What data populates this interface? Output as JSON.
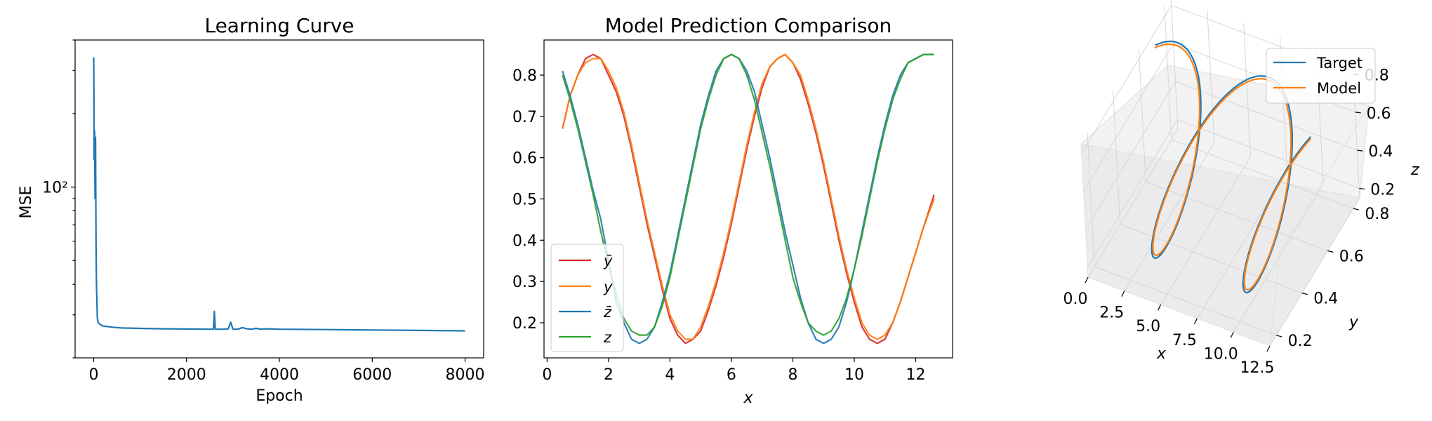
{
  "colors": {
    "blue": "#1f77b4",
    "orange": "#ff7f0e",
    "green": "#2ca02c",
    "red": "#d62728"
  },
  "chart_data": [
    {
      "type": "line",
      "title": "Learning Curve",
      "xlabel": "Epoch",
      "ylabel": "MSE",
      "xlim": [
        -400,
        8400
      ],
      "ylim": [
        20,
        400
      ],
      "yscale": "log",
      "xticks": [
        0,
        2000,
        4000,
        6000,
        8000
      ],
      "xtick_labels": [
        "0",
        "2000",
        "4000",
        "6000",
        "8000"
      ],
      "yticks": [
        100
      ],
      "ytick_labels": [
        "10²"
      ],
      "series": [
        {
          "color": "#1f77b4",
          "x": [
            0,
            5,
            10,
            20,
            30,
            40,
            50,
            60,
            80,
            100,
            150,
            200,
            400,
            600,
            1000,
            1500,
            2000,
            2500,
            2580,
            2600,
            2620,
            2700,
            2800,
            2900,
            2950,
            3000,
            3100,
            3200,
            3300,
            3400,
            3500,
            3600,
            3700,
            4000,
            5000,
            6000,
            7000,
            8000
          ],
          "y": [
            340,
            250,
            130,
            170,
            90,
            160,
            60,
            40,
            29,
            27.8,
            27.3,
            27,
            26.7,
            26.5,
            26.4,
            26.3,
            26.25,
            26.2,
            26.2,
            31,
            26.2,
            26.2,
            26.2,
            26.3,
            28,
            26.2,
            26.2,
            26.6,
            26.3,
            26.2,
            26.4,
            26.2,
            26.3,
            26.2,
            26.1,
            26.0,
            25.9,
            25.8
          ]
        }
      ]
    },
    {
      "type": "line",
      "title": "Model Prediction Comparison",
      "xlabel": "x",
      "ylabel": "",
      "xlim": [
        -0.1,
        13.2
      ],
      "ylim": [
        0.115,
        0.885
      ],
      "xticks": [
        0,
        2,
        4,
        6,
        8,
        10,
        12
      ],
      "xtick_labels": [
        "0",
        "2",
        "4",
        "6",
        "8",
        "10",
        "12"
      ],
      "yticks": [
        0.2,
        0.3,
        0.4,
        0.5,
        0.6,
        0.7,
        0.8
      ],
      "ytick_labels": [
        "0.2",
        "0.3",
        "0.4",
        "0.5",
        "0.6",
        "0.7",
        "0.8"
      ],
      "legend_position": "lower-left",
      "series": [
        {
          "name": "ȳ",
          "color": "#d62728",
          "x": [
            0.5,
            0.75,
            1.0,
            1.25,
            1.5,
            1.75,
            2.0,
            2.25,
            2.5,
            2.75,
            3.0,
            3.25,
            3.5,
            3.75,
            4.0,
            4.25,
            4.5,
            4.75,
            5.0,
            5.25,
            5.5,
            5.75,
            6.0,
            6.25,
            6.5,
            6.75,
            7.0,
            7.25,
            7.5,
            7.75,
            8.0,
            8.25,
            8.5,
            8.75,
            9.0,
            9.25,
            9.5,
            9.75,
            10.0,
            10.25,
            10.5,
            10.75,
            11.0,
            11.25,
            11.5,
            11.75,
            12.0,
            12.25,
            12.6
          ],
          "y": [
            0.67,
            0.75,
            0.8,
            0.84,
            0.85,
            0.84,
            0.8,
            0.76,
            0.7,
            0.62,
            0.53,
            0.44,
            0.36,
            0.28,
            0.21,
            0.17,
            0.15,
            0.16,
            0.18,
            0.23,
            0.29,
            0.36,
            0.44,
            0.53,
            0.62,
            0.7,
            0.77,
            0.82,
            0.84,
            0.85,
            0.83,
            0.79,
            0.73,
            0.66,
            0.58,
            0.49,
            0.4,
            0.32,
            0.25,
            0.19,
            0.16,
            0.15,
            0.16,
            0.2,
            0.25,
            0.31,
            0.37,
            0.43,
            0.51
          ]
        },
        {
          "name": "y",
          "color": "#ff7f0e",
          "x": [
            0.5,
            0.75,
            1.0,
            1.25,
            1.5,
            1.75,
            2.0,
            2.25,
            2.5,
            2.75,
            3.0,
            3.25,
            3.5,
            3.75,
            4.0,
            4.25,
            4.5,
            4.75,
            5.0,
            5.25,
            5.5,
            5.75,
            6.0,
            6.25,
            6.5,
            6.75,
            7.0,
            7.25,
            7.5,
            7.75,
            8.0,
            8.25,
            8.5,
            8.75,
            9.0,
            9.25,
            9.5,
            9.75,
            10.0,
            10.25,
            10.5,
            10.75,
            11.0,
            11.25,
            11.5,
            11.75,
            12.0,
            12.25,
            12.6
          ],
          "y": [
            0.67,
            0.75,
            0.8,
            0.83,
            0.84,
            0.84,
            0.81,
            0.77,
            0.71,
            0.63,
            0.54,
            0.45,
            0.37,
            0.29,
            0.22,
            0.18,
            0.16,
            0.16,
            0.19,
            0.24,
            0.3,
            0.37,
            0.45,
            0.54,
            0.63,
            0.71,
            0.78,
            0.82,
            0.84,
            0.85,
            0.83,
            0.8,
            0.74,
            0.67,
            0.59,
            0.5,
            0.41,
            0.33,
            0.26,
            0.2,
            0.17,
            0.16,
            0.17,
            0.2,
            0.25,
            0.31,
            0.37,
            0.43,
            0.5
          ]
        },
        {
          "name": "z̄",
          "color": "#1f77b4",
          "x": [
            0.5,
            0.75,
            1.0,
            1.25,
            1.5,
            1.75,
            2.0,
            2.25,
            2.5,
            2.75,
            3.0,
            3.25,
            3.5,
            3.75,
            4.0,
            4.25,
            4.5,
            4.75,
            5.0,
            5.25,
            5.5,
            5.75,
            6.0,
            6.25,
            6.5,
            6.75,
            7.0,
            7.25,
            7.5,
            7.75,
            8.0,
            8.25,
            8.5,
            8.75,
            9.0,
            9.25,
            9.5,
            9.75,
            10.0,
            10.25,
            10.5,
            10.75,
            11.0,
            11.25,
            11.5,
            11.75,
            12.0,
            12.25,
            12.6
          ],
          "y": [
            0.81,
            0.75,
            0.68,
            0.6,
            0.52,
            0.45,
            0.35,
            0.25,
            0.2,
            0.16,
            0.15,
            0.16,
            0.19,
            0.25,
            0.32,
            0.41,
            0.5,
            0.59,
            0.68,
            0.75,
            0.81,
            0.84,
            0.85,
            0.84,
            0.81,
            0.76,
            0.68,
            0.6,
            0.51,
            0.42,
            0.34,
            0.26,
            0.2,
            0.16,
            0.15,
            0.16,
            0.19,
            0.25,
            0.33,
            0.42,
            0.51,
            0.6,
            0.68,
            0.75,
            0.8,
            0.83,
            0.84,
            0.85,
            0.85
          ]
        },
        {
          "name": "z",
          "color": "#2ca02c",
          "x": [
            0.5,
            0.75,
            1.0,
            1.25,
            1.5,
            1.75,
            2.0,
            2.25,
            2.5,
            2.75,
            3.0,
            3.25,
            3.5,
            3.75,
            4.0,
            4.25,
            4.5,
            4.75,
            5.0,
            5.25,
            5.5,
            5.75,
            6.0,
            6.25,
            6.5,
            6.75,
            7.0,
            7.25,
            7.5,
            7.75,
            8.0,
            8.25,
            8.5,
            8.75,
            9.0,
            9.25,
            9.5,
            9.75,
            10.0,
            10.25,
            10.5,
            10.75,
            11.0,
            11.25,
            11.5,
            11.75,
            12.0,
            12.25,
            12.6
          ],
          "y": [
            0.8,
            0.74,
            0.67,
            0.59,
            0.51,
            0.42,
            0.34,
            0.27,
            0.21,
            0.18,
            0.17,
            0.17,
            0.19,
            0.24,
            0.31,
            0.4,
            0.49,
            0.58,
            0.67,
            0.74,
            0.8,
            0.84,
            0.85,
            0.84,
            0.8,
            0.74,
            0.66,
            0.58,
            0.49,
            0.4,
            0.31,
            0.25,
            0.2,
            0.18,
            0.17,
            0.18,
            0.21,
            0.26,
            0.33,
            0.41,
            0.5,
            0.59,
            0.67,
            0.74,
            0.79,
            0.83,
            0.84,
            0.85,
            0.85
          ]
        }
      ]
    },
    {
      "type": "line",
      "projection": "3d",
      "title": "",
      "xlabel": "x",
      "ylabel": "y",
      "zlabel": "z",
      "xlim": [
        0,
        12.5
      ],
      "ylim": [
        0.15,
        0.85
      ],
      "zlim": [
        0.15,
        0.85
      ],
      "xticks": [
        0.0,
        2.5,
        5.0,
        7.5,
        10.0,
        12.5
      ],
      "xtick_labels": [
        "0.0",
        "2.5",
        "5.0",
        "7.5",
        "10.0",
        "12.5"
      ],
      "yticks": [
        0.2,
        0.4,
        0.6,
        0.8
      ],
      "ytick_labels": [
        "0.2",
        "0.4",
        "0.6",
        "0.8"
      ],
      "zticks": [
        0.2,
        0.4,
        0.6,
        0.8
      ],
      "ztick_labels": [
        "0.2",
        "0.4",
        "0.6",
        "0.8"
      ],
      "legend_position": "upper-right",
      "series": [
        {
          "name": "Target",
          "color": "#1f77b4",
          "t_range": [
            0.5,
            12.6
          ],
          "y_formula": "0.5+0.35*sin(t)",
          "z_formula": "0.5+0.35*cos(t)"
        },
        {
          "name": "Model",
          "color": "#ff7f0e",
          "t_range": [
            0.5,
            12.6
          ],
          "y_formula": "0.5+0.34*sin(t)",
          "z_formula": "0.5+0.34*cos(t)"
        }
      ]
    }
  ]
}
